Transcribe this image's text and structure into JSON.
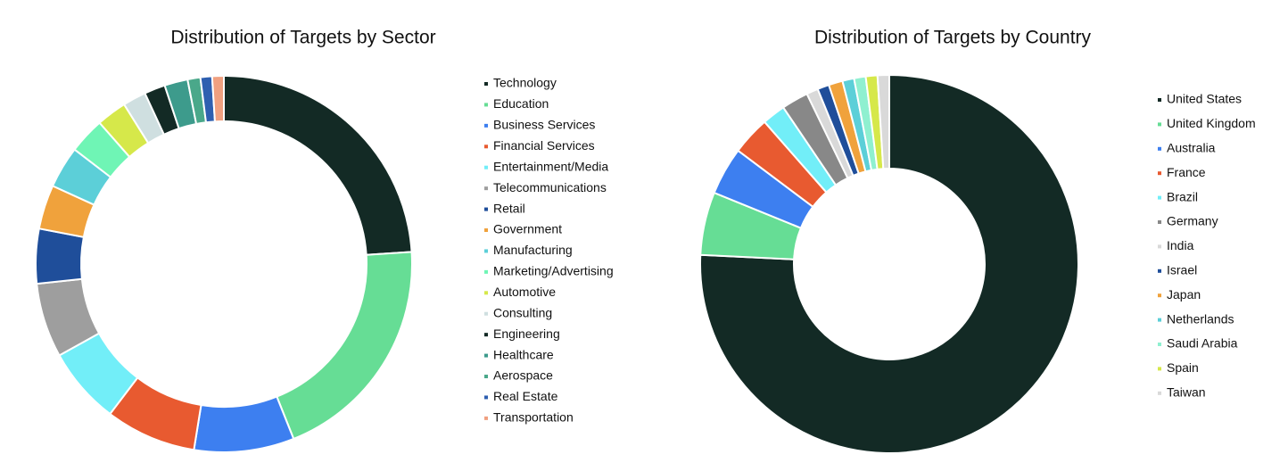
{
  "chart_data": [
    {
      "type": "pie",
      "title": "Distribution of Targets by Sector",
      "categories": [
        "Technology",
        "Education",
        "Business Services",
        "Financial Services",
        "Entertainment/Media",
        "Telecommunications",
        "Retail",
        "Government",
        "Manufacturing",
        "Marketing/Advertising",
        "Automotive",
        "Consulting",
        "Engineering",
        "Healthcare",
        "Aerospace",
        "Real Estate",
        "Transportation"
      ],
      "values": [
        24,
        20,
        8.6,
        7.8,
        6.6,
        6.4,
        4.7,
        3.8,
        3.6,
        3.1,
        2.6,
        2,
        1.8,
        2,
        1.1,
        1,
        1
      ],
      "colors": [
        "#132a25",
        "#66dd95",
        "#3d7ff0",
        "#e85a30",
        "#72eef8",
        "#9e9e9e",
        "#1f4e9a",
        "#f0a23c",
        "#5ccfd8",
        "#6ff5b5",
        "#d6e84a",
        "#cfdfe0",
        "#132a25",
        "#3d9b8c",
        "#4aa88a",
        "#2e5fb0",
        "#f0a080"
      ]
    },
    {
      "type": "pie",
      "title": "Distribution of Targets by Country",
      "categories": [
        "United States",
        "United Kingdom",
        "Australia",
        "France",
        "Brazil",
        "Germany",
        "India",
        "Israel",
        "Japan",
        "Netherlands",
        "Saudi Arabia",
        "Spain",
        "Taiwan"
      ],
      "values": [
        76,
        5.4,
        4.1,
        3.3,
        2,
        2.3,
        1,
        1,
        1.2,
        1,
        1,
        1,
        1
      ],
      "colors": [
        "#132a25",
        "#66dd95",
        "#3d7ff0",
        "#e85a30",
        "#72eef8",
        "#888888",
        "#d9d9d9",
        "#1f4e9a",
        "#f0a23c",
        "#5ccfd8",
        "#8ff0d0",
        "#d6e84a",
        "#d9d9d9"
      ]
    }
  ]
}
